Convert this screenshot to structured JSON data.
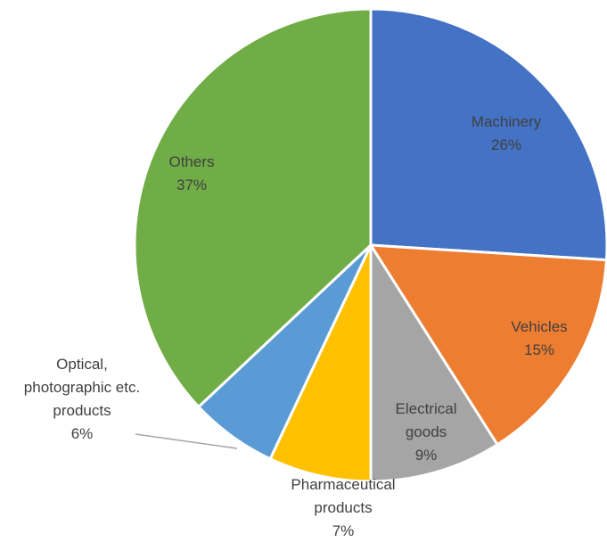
{
  "chart_data": {
    "type": "pie",
    "categories": [
      "Machinery",
      "Vehicles",
      "Electrical goods",
      "Pharmaceutical products",
      "Optical, photographic etc. products",
      "Others"
    ],
    "values": [
      26,
      15,
      9,
      7,
      6,
      37
    ],
    "value_labels": [
      "26%",
      "15%",
      "9%",
      "7%",
      "6%",
      "37%"
    ],
    "colors": [
      "#4472c4",
      "#ed7d31",
      "#a5a5a5",
      "#ffc000",
      "#5b9bd5",
      "#70ad47"
    ]
  }
}
